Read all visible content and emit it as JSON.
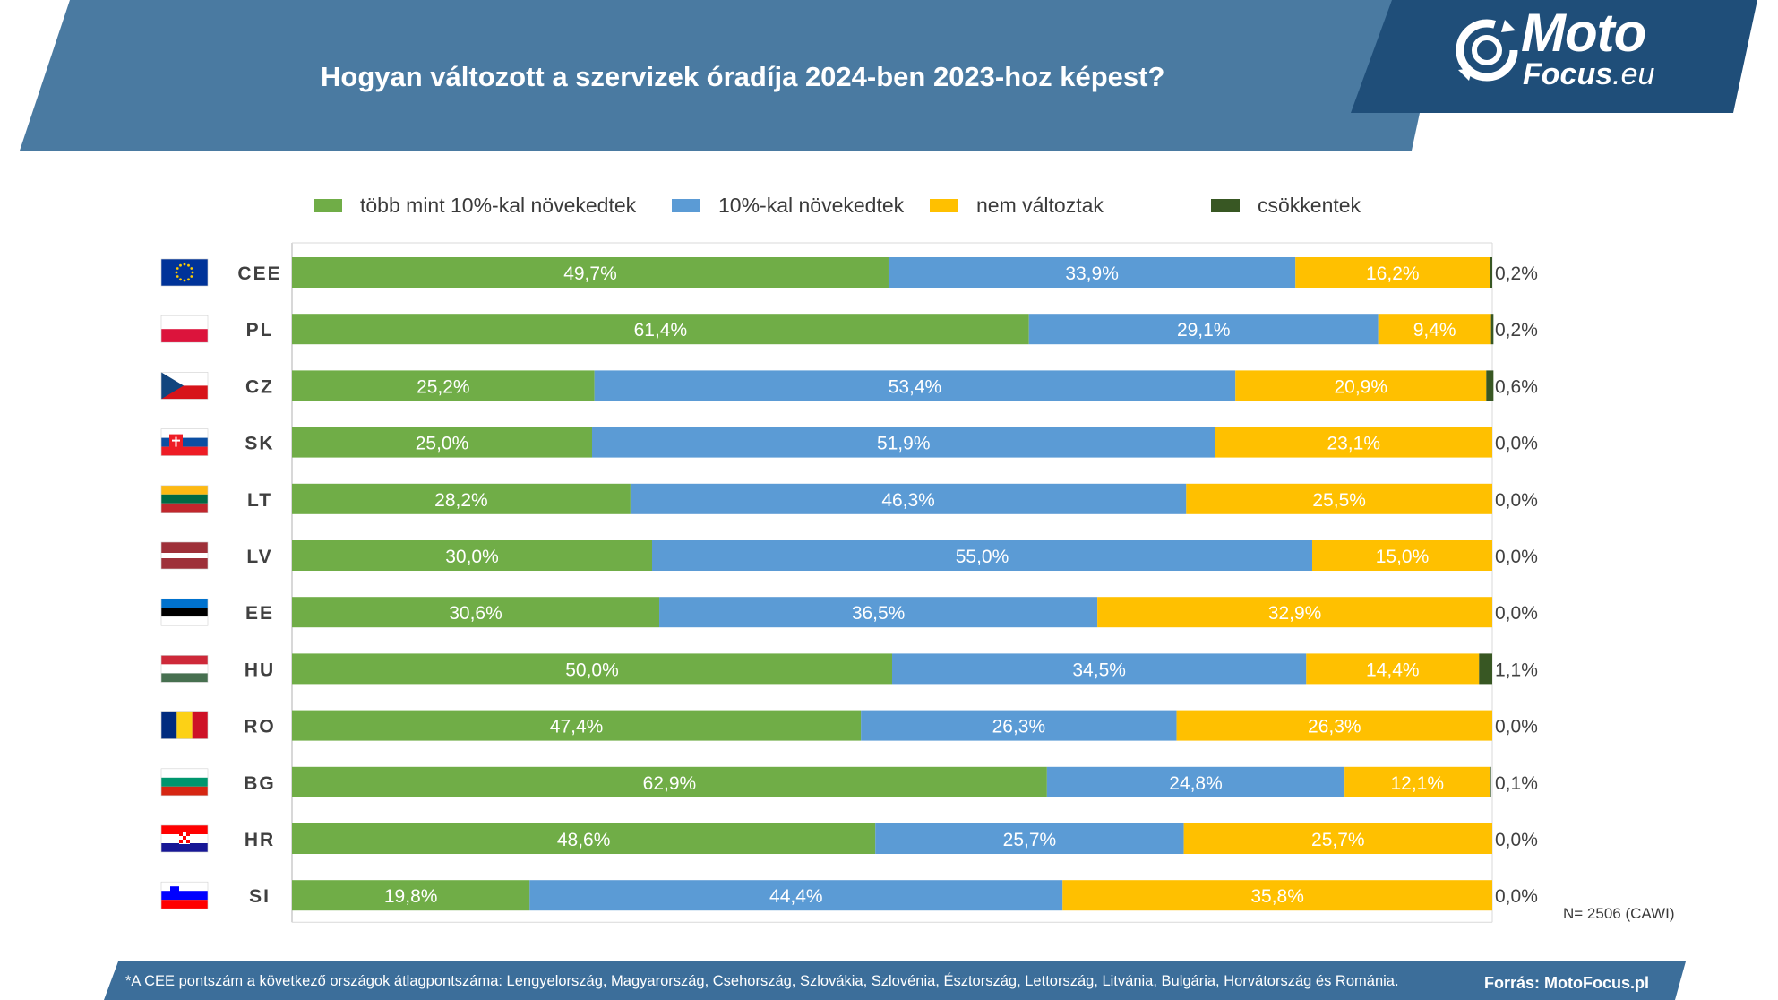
{
  "header": {
    "title": "Hogyan változott a szervizek óradíja 2024-ben 2023-hoz képest?",
    "logo_line1": "Moto",
    "logo_line2": "Focus",
    "logo_suffix": ".eu"
  },
  "colors": {
    "header_band": "#4a7aa1",
    "logo_band": "#1f4e79",
    "footer_band": "#3c6e9a",
    "more_than_10": "#70ad47",
    "up_to_10": "#5b9bd5",
    "unchanged": "#ffc000",
    "decreased": "#385723"
  },
  "chart_data": {
    "type": "bar",
    "orientation": "horizontal",
    "stacked": true,
    "xlim": [
      0,
      100
    ],
    "unit": "%",
    "categories": [
      "CEE",
      "PL",
      "CZ",
      "SK",
      "LT",
      "LV",
      "EE",
      "HU",
      "RO",
      "BG",
      "HR",
      "SI"
    ],
    "category_flags": [
      "eu",
      "pl",
      "cz",
      "sk",
      "lt",
      "lv",
      "ee",
      "hu",
      "ro",
      "bg",
      "hr",
      "si"
    ],
    "series": [
      {
        "name": "több mint 10%-kal növekedtek",
        "color": "#70ad47",
        "values": [
          49.7,
          61.4,
          25.2,
          25.0,
          28.2,
          30.0,
          30.6,
          50.0,
          47.4,
          62.9,
          48.6,
          19.8
        ],
        "labels": [
          "49,7%",
          "61,4%",
          "25,2%",
          "25,0%",
          "28,2%",
          "30,0%",
          "30,6%",
          "50,0%",
          "47,4%",
          "62,9%",
          "48,6%",
          "19,8%"
        ]
      },
      {
        "name": "10%-kal növekedtek",
        "color": "#5b9bd5",
        "values": [
          33.9,
          29.1,
          53.4,
          51.9,
          46.3,
          55.0,
          36.5,
          34.5,
          26.3,
          24.8,
          25.7,
          44.4
        ],
        "labels": [
          "33,9%",
          "29,1%",
          "53,4%",
          "51,9%",
          "46,3%",
          "55,0%",
          "36,5%",
          "34,5%",
          "26,3%",
          "24,8%",
          "25,7%",
          "44,4%"
        ]
      },
      {
        "name": "nem változtak",
        "color": "#ffc000",
        "values": [
          16.2,
          9.4,
          20.9,
          23.1,
          25.5,
          15.0,
          32.9,
          14.4,
          26.3,
          12.1,
          25.7,
          35.8
        ],
        "labels": [
          "16,2%",
          "9,4%",
          "20,9%",
          "23,1%",
          "25,5%",
          "15,0%",
          "32,9%",
          "14,4%",
          "26,3%",
          "12,1%",
          "25,7%",
          "35,8%"
        ]
      },
      {
        "name": "csökkentek",
        "color": "#385723",
        "values": [
          0.2,
          0.2,
          0.6,
          0.0,
          0.0,
          0.0,
          0.0,
          1.1,
          0.0,
          0.1,
          0.0,
          0.0
        ],
        "labels": [
          "0,2%",
          "0,2%",
          "0,6%",
          "0,0%",
          "0,0%",
          "0,0%",
          "0,0%",
          "1,1%",
          "0,0%",
          "0,1%",
          "0,0%",
          "0,0%"
        ]
      }
    ],
    "legend_position": "top",
    "grid": false
  },
  "notes": {
    "sample": "N= 2506 (CAWI)",
    "footnote": "*A CEE pontszám a következő országok átlagpontszáma: Lengyelország, Magyarország, Csehország, Szlovákia, Szlovénia, Észtország, Lettország, Litvánia, Bulgária, Horvátország és Románia.",
    "source": "Forrás: MotoFocus.pl"
  }
}
